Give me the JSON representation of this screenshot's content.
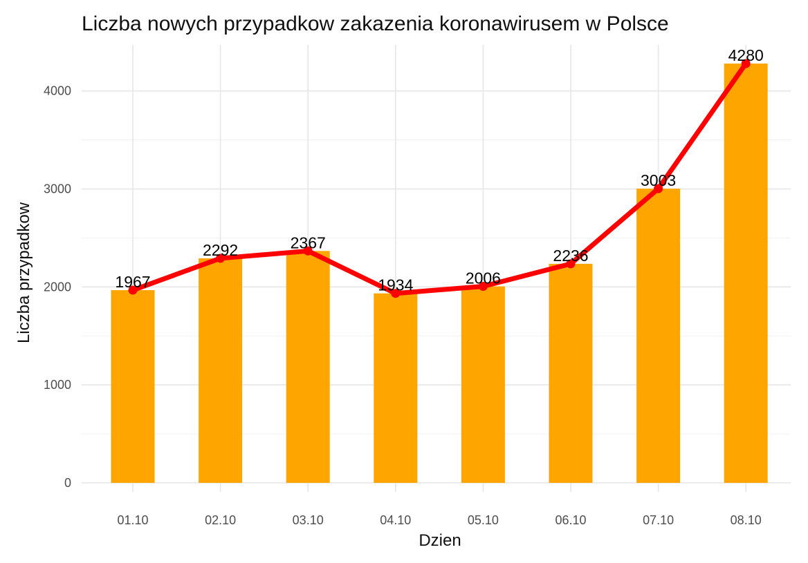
{
  "chart_data": {
    "type": "bar",
    "title": "Liczba nowych przypadkow zakazenia koronawirusem w Polsce",
    "xlabel": "Dzien",
    "ylabel": "Liczba przypadkow",
    "categories": [
      "01.10",
      "02.10",
      "03.10",
      "04.10",
      "05.10",
      "06.10",
      "07.10",
      "08.10"
    ],
    "values": [
      1967,
      2292,
      2367,
      1934,
      2006,
      2236,
      3003,
      4280
    ],
    "overlay": {
      "type": "line",
      "with_points": true,
      "values": [
        1967,
        2292,
        2367,
        1934,
        2006,
        2236,
        3003,
        4280
      ]
    },
    "data_labels": [
      "1967",
      "2292",
      "2367",
      "1934",
      "2006",
      "2236",
      "3003",
      "4280"
    ],
    "yticks": [
      0,
      1000,
      2000,
      3000,
      4000
    ],
    "ylim": [
      0,
      4280
    ],
    "grid": true,
    "legend": "none",
    "colors": {
      "bar": "#FFA500",
      "line": "#FF0000"
    }
  }
}
